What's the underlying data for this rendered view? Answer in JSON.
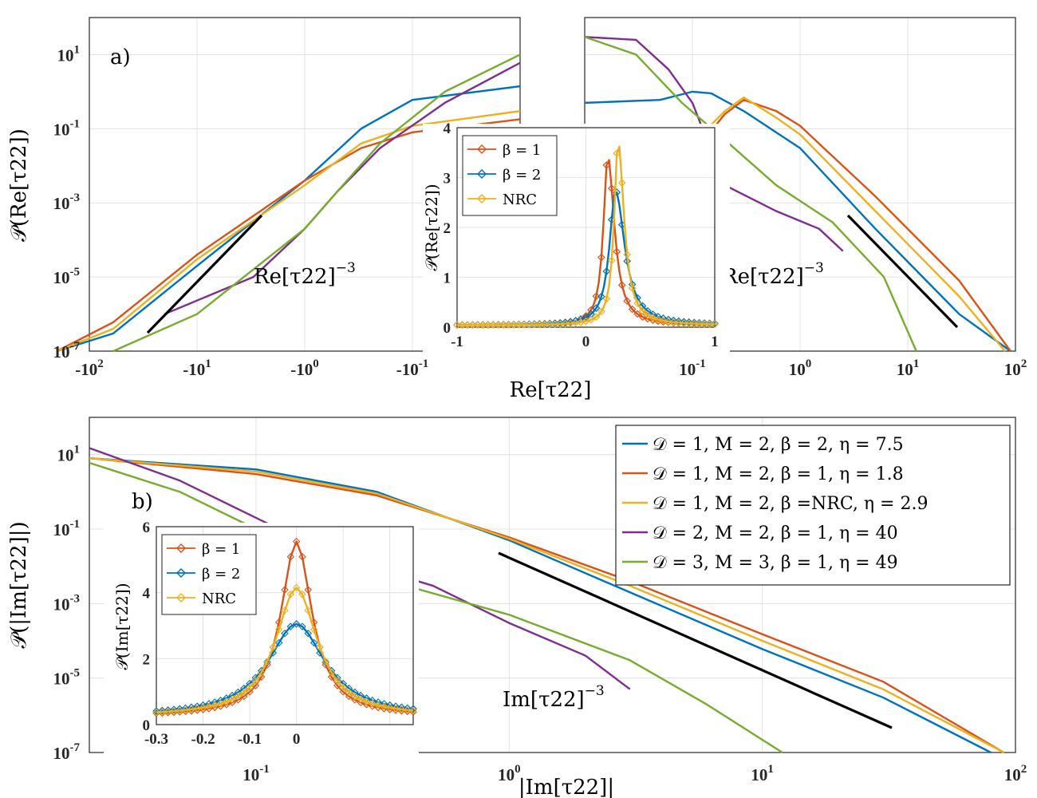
{
  "colors": {
    "blue": "#0072BD",
    "orange": "#D95319",
    "yellow": "#EDB120",
    "purple": "#7E2F8E",
    "green": "#77AC30"
  },
  "chart_data": [
    {
      "id": "panel-a",
      "type": "line",
      "panel_label": "a)",
      "xlabel": "Re[τ22]",
      "ylabel": "𝒫(Re[τ22])",
      "yscale": "log",
      "ylim": [
        1e-07,
        100
      ],
      "y_ticks": [
        {
          "base": "10",
          "exp": "1"
        },
        {
          "base": "10",
          "exp": "-1"
        },
        {
          "base": "10",
          "exp": "-3"
        },
        {
          "base": "10",
          "exp": "-5"
        },
        {
          "base": "10",
          "exp": "-7"
        }
      ],
      "x_ticks_negative": [
        {
          "base": "-10",
          "exp": "2"
        },
        {
          "base": "-10",
          "exp": "1"
        },
        {
          "base": "-10",
          "exp": "0"
        },
        {
          "base": "-10",
          "exp": "-1"
        }
      ],
      "x_ticks_positive": [
        {
          "base": "10",
          "exp": "-1"
        },
        {
          "base": "10",
          "exp": "0"
        },
        {
          "base": "10",
          "exp": "1"
        },
        {
          "base": "10",
          "exp": "2"
        }
      ],
      "annotations": [
        {
          "text": "Re[τ22]",
          "sup": "−3"
        },
        {
          "text": "Re[τ22]",
          "sup": "−3"
        }
      ],
      "series": [
        {
          "color": "blue",
          "left": [
            [
              -200,
              1e-07
            ],
            [
              -60,
              3e-07
            ],
            [
              -10,
              2e-05
            ],
            [
              -1,
              0.004
            ],
            [
              -0.3,
              0.1
            ],
            [
              -0.1,
              0.6
            ],
            [
              -0.01,
              1.4
            ]
          ],
          "right": [
            [
              0.01,
              0.5
            ],
            [
              0.05,
              0.6
            ],
            [
              0.1,
              1.0
            ],
            [
              0.15,
              0.9
            ],
            [
              0.3,
              0.3
            ],
            [
              1,
              0.03
            ],
            [
              5,
              0.0002
            ],
            [
              30,
              1e-06
            ],
            [
              90,
              1e-07
            ]
          ]
        },
        {
          "color": "orange",
          "left": [
            [
              -200,
              1e-07
            ],
            [
              -60,
              6e-07
            ],
            [
              -10,
              4e-05
            ],
            [
              -1,
              0.004
            ],
            [
              -0.3,
              0.03
            ],
            [
              -0.1,
              0.08
            ],
            [
              -0.01,
              0.18
            ]
          ],
          "right": [
            [
              0.01,
              0.01
            ],
            [
              0.1,
              0.02
            ],
            [
              0.2,
              0.25
            ],
            [
              0.3,
              0.6
            ],
            [
              0.6,
              0.3
            ],
            [
              1,
              0.12
            ],
            [
              5,
              0.0015
            ],
            [
              30,
              8e-06
            ],
            [
              90,
              1e-07
            ]
          ]
        },
        {
          "color": "yellow",
          "left": [
            [
              -200,
              1e-07
            ],
            [
              -60,
              4e-07
            ],
            [
              -10,
              3e-05
            ],
            [
              -1,
              0.003
            ],
            [
              -0.3,
              0.04
            ],
            [
              -0.1,
              0.12
            ],
            [
              -0.01,
              0.3
            ]
          ],
          "right": [
            [
              0.01,
              0.02
            ],
            [
              0.1,
              0.04
            ],
            [
              0.2,
              0.3
            ],
            [
              0.3,
              0.7
            ],
            [
              0.6,
              0.2
            ],
            [
              1,
              0.07
            ],
            [
              5,
              0.0006
            ],
            [
              30,
              3e-06
            ],
            [
              80,
              1e-07
            ]
          ]
        },
        {
          "color": "purple",
          "left": [
            [
              -20,
              1e-06
            ],
            [
              -3,
              1e-05
            ],
            [
              -1,
              0.0002
            ],
            [
              -0.5,
              0.002
            ],
            [
              -0.2,
              0.03
            ],
            [
              -0.05,
              0.5
            ],
            [
              -0.01,
              6
            ]
          ],
          "right": [
            [
              0.01,
              30
            ],
            [
              0.03,
              25
            ],
            [
              0.06,
              4
            ],
            [
              0.1,
              0.5
            ],
            [
              0.2,
              0.003
            ],
            [
              0.6,
              0.0006
            ],
            [
              1.5,
              0.0002
            ],
            [
              2.5,
              5e-05
            ]
          ]
        },
        {
          "color": "green",
          "left": [
            [
              -60,
              1e-07
            ],
            [
              -10,
              1e-06
            ],
            [
              -1,
              0.0002
            ],
            [
              -0.5,
              0.002
            ],
            [
              -0.2,
              0.04
            ],
            [
              -0.05,
              1
            ],
            [
              -0.01,
              10
            ]
          ],
          "right": [
            [
              0.01,
              30
            ],
            [
              0.03,
              10
            ],
            [
              0.08,
              0.5
            ],
            [
              0.2,
              0.05
            ],
            [
              0.6,
              0.003
            ],
            [
              2,
              0.0003
            ],
            [
              6,
              1e-05
            ],
            [
              12,
              1e-07
            ]
          ]
        }
      ],
      "inset": {
        "ylabel": "𝒫(Re[τ22])",
        "xlim": [
          -1,
          1
        ],
        "ylim": [
          0,
          4
        ],
        "x_ticks": [
          "-1",
          "0",
          "1"
        ],
        "y_ticks": [
          "0",
          "1",
          "2",
          "3",
          "4"
        ],
        "legend": [
          {
            "color": "orange",
            "label": "β = 1"
          },
          {
            "color": "blue",
            "label": "β = 2"
          },
          {
            "color": "yellow",
            "label": "NRC"
          }
        ],
        "series": [
          {
            "color": "orange",
            "peak_x": 0.17,
            "peak_y": 3.4,
            "width": 0.1
          },
          {
            "color": "blue",
            "peak_x": 0.23,
            "peak_y": 2.7,
            "width": 0.14
          },
          {
            "color": "yellow",
            "peak_x": 0.25,
            "peak_y": 3.7,
            "width": 0.09
          }
        ]
      }
    },
    {
      "id": "panel-b",
      "type": "line",
      "panel_label": "b)",
      "xlabel": "|Im[τ22]|",
      "ylabel": "𝒫(|Im[τ22]|)",
      "xscale": "log",
      "yscale": "log",
      "xlim": [
        0.01,
        100
      ],
      "ylim": [
        1e-07,
        100
      ],
      "x_ticks": [
        {
          "base": "10",
          "exp": "-1"
        },
        {
          "base": "10",
          "exp": "0"
        },
        {
          "base": "10",
          "exp": "1"
        },
        {
          "base": "10",
          "exp": "2"
        }
      ],
      "y_ticks": [
        {
          "base": "10",
          "exp": "1"
        },
        {
          "base": "10",
          "exp": "-1"
        },
        {
          "base": "10",
          "exp": "-3"
        },
        {
          "base": "10",
          "exp": "-5"
        },
        {
          "base": "10",
          "exp": "-7"
        }
      ],
      "annotation": {
        "text": "Im[τ22]",
        "sup": "−3"
      },
      "legend": [
        {
          "color": "blue",
          "label": "𝒟 = 1, M = 2, β = 2, η = 7.5"
        },
        {
          "color": "orange",
          "label": "𝒟 = 1, M = 2, β = 1, η = 1.8"
        },
        {
          "color": "yellow",
          "label": "𝒟 = 1, M = 2, β =NRC, η = 2.9"
        },
        {
          "color": "purple",
          "label": "𝒟 = 2, M = 2, β = 1, η = 40"
        },
        {
          "color": "green",
          "label": "𝒟 = 3, M = 3, β = 1, η = 49"
        }
      ],
      "series": [
        {
          "color": "blue",
          "points": [
            [
              0.01,
              8
            ],
            [
              0.1,
              4
            ],
            [
              0.3,
              1
            ],
            [
              1,
              0.05
            ],
            [
              3,
              0.002
            ],
            [
              10,
              6e-05
            ],
            [
              30,
              3e-06
            ],
            [
              80,
              1e-07
            ]
          ]
        },
        {
          "color": "orange",
          "points": [
            [
              0.01,
              8
            ],
            [
              0.1,
              3
            ],
            [
              0.3,
              0.8
            ],
            [
              1,
              0.06
            ],
            [
              3,
              0.004
            ],
            [
              10,
              0.00015
            ],
            [
              30,
              8e-06
            ],
            [
              90,
              1e-07
            ]
          ]
        },
        {
          "color": "yellow",
          "points": [
            [
              0.01,
              8
            ],
            [
              0.1,
              3.5
            ],
            [
              0.3,
              0.9
            ],
            [
              1,
              0.055
            ],
            [
              3,
              0.003
            ],
            [
              10,
              0.0001
            ],
            [
              30,
              5e-06
            ],
            [
              90,
              1e-07
            ]
          ]
        },
        {
          "color": "purple",
          "points": [
            [
              0.01,
              15
            ],
            [
              0.05,
              2
            ],
            [
              0.1,
              0.2
            ],
            [
              0.2,
              0.02
            ],
            [
              0.5,
              0.003
            ],
            [
              1,
              0.0003
            ],
            [
              2,
              4e-05
            ],
            [
              3,
              5e-06
            ]
          ]
        },
        {
          "color": "green",
          "points": [
            [
              0.01,
              6
            ],
            [
              0.05,
              1
            ],
            [
              0.1,
              0.1
            ],
            [
              0.3,
              0.005
            ],
            [
              1,
              0.0005
            ],
            [
              3,
              3e-05
            ],
            [
              6,
              2e-06
            ],
            [
              12,
              1e-07
            ]
          ]
        }
      ],
      "inset": {
        "ylabel": "𝒫(Im[τ22])",
        "xlim": [
          -0.3,
          0.25
        ],
        "ylim": [
          0,
          6
        ],
        "x_ticks": [
          "-0.3",
          "-0.2",
          "-0.1",
          "0"
        ],
        "y_ticks": [
          "0",
          "2",
          "4",
          "6"
        ],
        "legend": [
          {
            "color": "orange",
            "label": "β = 1"
          },
          {
            "color": "blue",
            "label": "β = 2"
          },
          {
            "color": "yellow",
            "label": "NRC"
          }
        ],
        "series": [
          {
            "color": "orange",
            "peak_y": 5.3,
            "width": 0.06
          },
          {
            "color": "blue",
            "peak_y": 2.8,
            "width": 0.11
          },
          {
            "color": "yellow",
            "peak_y": 3.9,
            "width": 0.08
          }
        ]
      }
    }
  ]
}
